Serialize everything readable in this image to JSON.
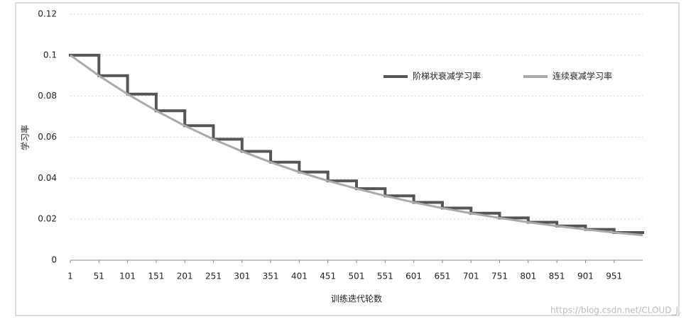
{
  "chart_data": {
    "type": "line",
    "y_label": "学习率",
    "x_label": "训练迭代轮数",
    "annotation": "https://blog.csdn.net/CLOUD_J",
    "xlim": [
      1,
      1001
    ],
    "ylim": [
      0,
      0.12
    ],
    "xticks": [
      1,
      51,
      101,
      151,
      201,
      251,
      301,
      351,
      401,
      451,
      501,
      551,
      601,
      651,
      701,
      751,
      801,
      851,
      901,
      951
    ],
    "yticks": [
      0,
      0.02,
      0.04,
      0.06,
      0.08,
      0.1,
      0.12
    ],
    "grid": true,
    "legend": "upper right",
    "series": [
      {
        "name": "阶梯状衰减学习率",
        "color": "#555555",
        "step": "post",
        "x": [
          1,
          51,
          101,
          151,
          201,
          251,
          301,
          351,
          401,
          451,
          501,
          551,
          601,
          651,
          701,
          751,
          801,
          851,
          901,
          951
        ],
        "values": [
          0.1,
          0.09,
          0.081,
          0.0729,
          0.0656,
          0.059,
          0.0531,
          0.0478,
          0.043,
          0.0387,
          0.0349,
          0.0314,
          0.0282,
          0.0254,
          0.0229,
          0.0206,
          0.0185,
          0.0167,
          0.015,
          0.0135
        ]
      },
      {
        "name": "连续衰减学习率",
        "color": "#aaaaaa",
        "x": [
          1,
          51,
          101,
          151,
          201,
          251,
          301,
          351,
          401,
          451,
          501,
          551,
          601,
          651,
          701,
          751,
          801,
          851,
          901,
          951,
          1001
        ],
        "values": [
          0.1,
          0.09,
          0.081,
          0.0729,
          0.0656,
          0.059,
          0.0531,
          0.0478,
          0.043,
          0.0387,
          0.0349,
          0.0314,
          0.0282,
          0.0254,
          0.0229,
          0.0206,
          0.0185,
          0.0167,
          0.015,
          0.0135,
          0.0122
        ]
      }
    ]
  }
}
